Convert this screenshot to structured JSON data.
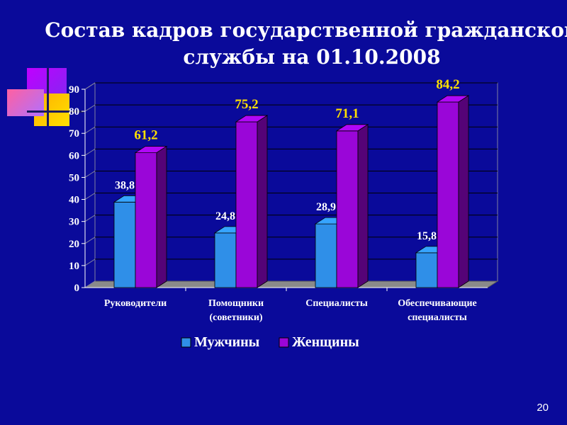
{
  "slide": {
    "title_line1": "Состав кадров государственной гражданской",
    "title_line2": "службы на 01.10.2008",
    "number": "20"
  },
  "colors": {
    "background": "#0a0a9a",
    "men": "#2f8fe8",
    "women": "#9a06d8",
    "label_women": "#ffe000",
    "label_men": "#ffffff"
  },
  "chart_data": {
    "type": "bar",
    "title": "",
    "categories": [
      [
        "Руководители"
      ],
      [
        "Помощники",
        "(советники)"
      ],
      [
        "Специалисты"
      ],
      [
        "Обеспечивающие",
        "специалисты"
      ]
    ],
    "series": [
      {
        "name": "Мужчины",
        "values": [
          38.8,
          24.8,
          28.9,
          15.8
        ],
        "labels": [
          "38,8",
          "24,8",
          "28,9",
          "15,8"
        ]
      },
      {
        "name": "Женщины",
        "values": [
          61.2,
          75.2,
          71.1,
          84.2
        ],
        "labels": [
          "61,2",
          "75,2",
          "71,1",
          "84,2"
        ]
      }
    ],
    "ylim": [
      0,
      90
    ],
    "yticks": [
      0,
      10,
      20,
      30,
      40,
      50,
      60,
      70,
      80,
      90
    ],
    "grid": true,
    "legend_position": "bottom",
    "bar_style": "3d"
  }
}
